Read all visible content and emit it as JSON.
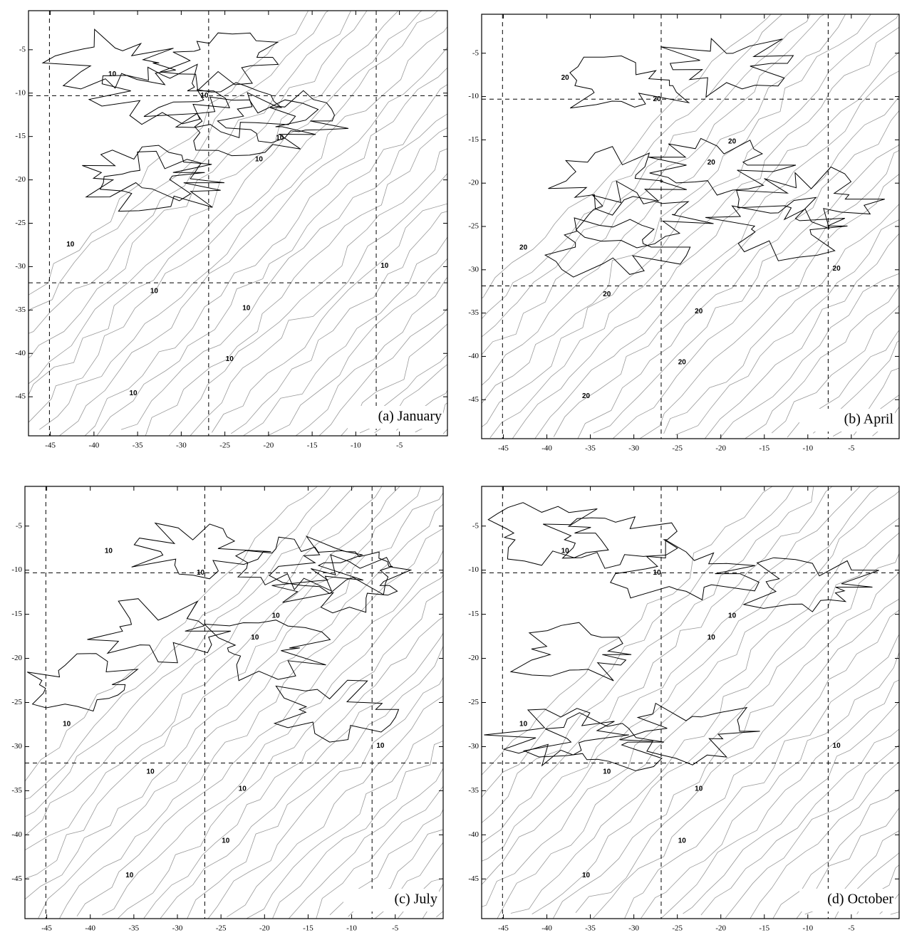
{
  "panels": [
    {
      "label": "(a) January",
      "xlim": [
        -47.5,
        0.5
      ],
      "ylim": [
        -49.5,
        -0.5
      ],
      "xticks": [
        -45,
        -40,
        -35,
        -30,
        -25,
        -20,
        -15,
        -10,
        -5
      ],
      "yticks": [
        -5,
        -10,
        -15,
        -20,
        -25,
        -30,
        -35,
        -40,
        -45
      ],
      "contour_labels": [
        "10",
        "10",
        "10",
        "10",
        "10",
        "10",
        "10",
        "10",
        "10",
        "10"
      ]
    },
    {
      "label": "(b) April",
      "xlim": [
        -47.5,
        0.5
      ],
      "ylim": [
        -49.5,
        -0.5
      ],
      "xticks": [
        -45,
        -40,
        -35,
        -30,
        -25,
        -20,
        -15,
        -10,
        -5
      ],
      "yticks": [
        -5,
        -10,
        -15,
        -20,
        -25,
        -30,
        -35,
        -40,
        -45
      ],
      "contour_labels": [
        "20",
        "20",
        "20",
        "20",
        "20",
        "20",
        "20",
        "20",
        "20",
        "20"
      ]
    },
    {
      "label": "(c) July",
      "xlim": [
        -47.5,
        0.5
      ],
      "ylim": [
        -49.5,
        -0.5
      ],
      "xticks": [
        -45,
        -40,
        -35,
        -30,
        -25,
        -20,
        -15,
        -10,
        -5
      ],
      "yticks": [
        -5,
        -10,
        -15,
        -20,
        -25,
        -30,
        -35,
        -40,
        -45
      ],
      "contour_labels": [
        "10",
        "10",
        "10",
        "10",
        "10",
        "10",
        "10",
        "10",
        "10",
        "10"
      ]
    },
    {
      "label": "(d) October",
      "xlim": [
        -47.5,
        0.5
      ],
      "ylim": [
        -49.5,
        -0.5
      ],
      "xticks": [
        -45,
        -40,
        -35,
        -30,
        -25,
        -20,
        -15,
        -10,
        -5
      ],
      "yticks": [
        -5,
        -10,
        -15,
        -20,
        -25,
        -30,
        -35,
        -40,
        -45
      ],
      "contour_labels": [
        "10",
        "10",
        "10",
        "10",
        "10",
        "10",
        "10",
        "10",
        "10",
        "10"
      ]
    }
  ]
}
